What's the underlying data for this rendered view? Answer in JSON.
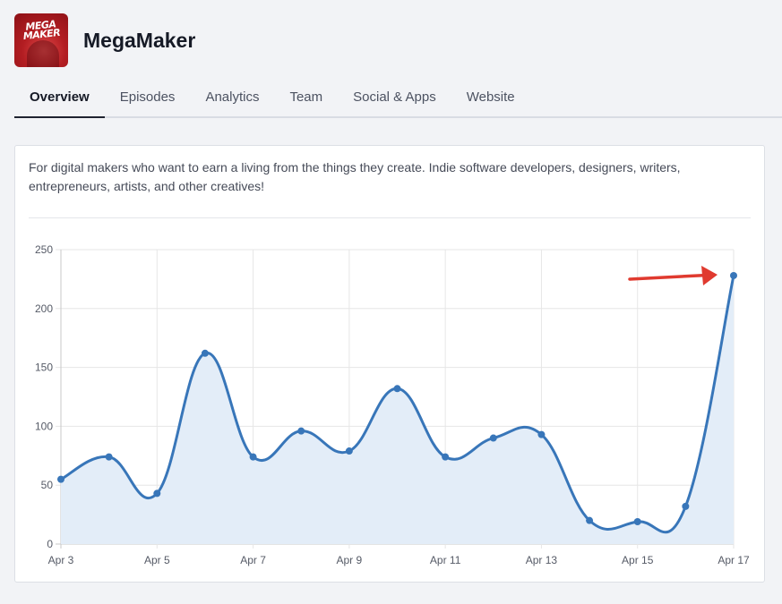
{
  "app": {
    "title": "MegaMaker",
    "logo_text": "MEGA MAKER"
  },
  "tabs": [
    {
      "label": "Overview",
      "active": true
    },
    {
      "label": "Episodes",
      "active": false
    },
    {
      "label": "Analytics",
      "active": false
    },
    {
      "label": "Team",
      "active": false
    },
    {
      "label": "Social & Apps",
      "active": false
    },
    {
      "label": "Website",
      "active": false
    }
  ],
  "description": "For digital makers who want to earn a living from the things they create. Indie software developers, designers, writers, entrepreneurs, artists, and other creatives!",
  "colors": {
    "line": "#3876b9",
    "fill": "#e3edf8",
    "arrow": "#e03a2f",
    "grid": "#e6e6e6"
  },
  "chart_data": {
    "type": "area",
    "title": "",
    "xlabel": "",
    "ylabel": "",
    "x": [
      "Apr 3",
      "Apr 4",
      "Apr 5",
      "Apr 6",
      "Apr 7",
      "Apr 8",
      "Apr 9",
      "Apr 10",
      "Apr 11",
      "Apr 12",
      "Apr 13",
      "Apr 14",
      "Apr 15",
      "Apr 16",
      "Apr 17"
    ],
    "x_tick_labels": [
      "Apr 3",
      "Apr 5",
      "Apr 7",
      "Apr 9",
      "Apr 11",
      "Apr 13",
      "Apr 15",
      "Apr 17"
    ],
    "values": [
      55,
      74,
      43,
      162,
      74,
      96,
      79,
      132,
      74,
      90,
      93,
      20,
      19,
      32,
      228
    ],
    "y_ticks": [
      0,
      50,
      100,
      150,
      200,
      250
    ],
    "ylim": [
      0,
      250
    ],
    "grid": true,
    "legend": "none",
    "annotation": "red arrow pointing to Apr 17 peak"
  }
}
